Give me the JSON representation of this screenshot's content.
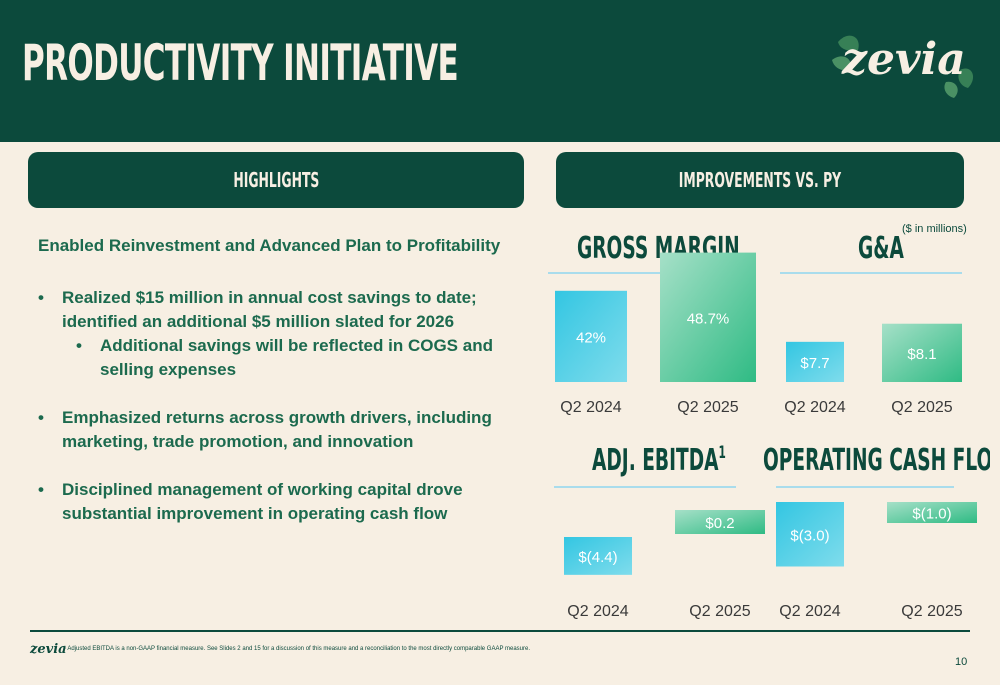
{
  "title": "PRODUCTIVITY INITIATIVE",
  "logo_text": "zevia",
  "highlights": {
    "header": "HIGHLIGHTS",
    "lead": "Enabled Reinvestment and Advanced Plan to Profitability",
    "bullets": [
      "Realized $15 million in annual cost savings to date; identified an additional $5 million slated for 2026",
      "Additional savings will be reflected in COGS and selling expenses",
      "Emphasized returns across growth drivers, including marketing, trade promotion, and innovation",
      "Disciplined management of working capital drove substantial improvement in operating cash flow"
    ]
  },
  "improvements_header": "IMPROVEMENTS VS. PY",
  "units_note": "($ in millions)",
  "chart_data": [
    {
      "type": "bar",
      "title": "GROSS MARGIN",
      "categories": [
        "Q2 2024",
        "Q2 2025"
      ],
      "values": [
        42,
        48.7
      ],
      "labels": [
        "42%",
        "48.7%"
      ]
    },
    {
      "type": "bar",
      "title": "G&A",
      "categories": [
        "Q2 2024",
        "Q2 2025"
      ],
      "values": [
        7.7,
        8.1
      ],
      "labels": [
        "$7.7",
        "$8.1"
      ]
    },
    {
      "type": "bar",
      "title": "ADJ. EBITDA",
      "title_superscript": "1",
      "categories": [
        "Q2 2024",
        "Q2 2025"
      ],
      "values": [
        -4.4,
        0.2
      ],
      "labels": [
        "$(4.4)",
        "$0.2"
      ]
    },
    {
      "type": "bar",
      "title": "OPERATING CASH FLOWS",
      "categories": [
        "Q2 2024",
        "Q2 2025"
      ],
      "values": [
        -3.0,
        -1.0
      ],
      "labels": [
        "$(3.0)",
        "$(1.0)"
      ]
    }
  ],
  "colors": {
    "dark_green": "#0c4a3c",
    "cream": "#f7efe3",
    "cyan": "#33c6e2",
    "green": "#2fbb84"
  },
  "footer": {
    "logo": "zevia",
    "footnote": "¹ Adjusted EBITDA is a non-GAAP financial measure. See Slides 2 and 15 for a discussion of this measure and a reconciliation to the most directly comparable GAAP measure.",
    "page_number": "10"
  }
}
